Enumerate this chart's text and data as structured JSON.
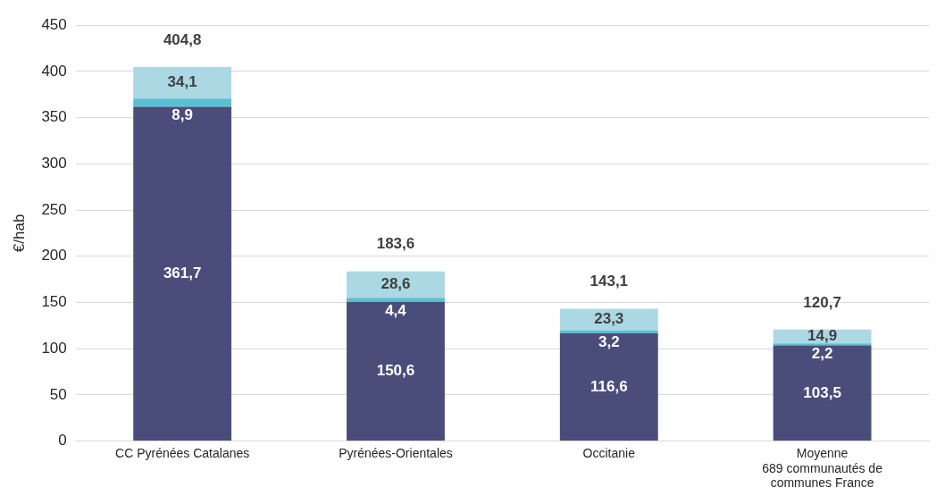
{
  "chart_data": {
    "type": "bar",
    "stacked": true,
    "ylabel": "€/hab",
    "categories": [
      "CC Pyrénées Catalanes",
      "Pyrénées-Orientales",
      "Occitanie",
      "Moyenne\n689 communautés de\ncommunes France"
    ],
    "series": [
      {
        "color": "#4a4d7a",
        "values": [
          361.7,
          150.6,
          116.6,
          103.5
        ],
        "value_labels": [
          "361,7",
          "150,6",
          "116,6",
          "103,5"
        ]
      },
      {
        "color": "#5bbfd2",
        "values": [
          8.9,
          4.4,
          3.2,
          2.2
        ],
        "value_labels": [
          "8,9",
          "4,4",
          "3,2",
          "2,2"
        ]
      },
      {
        "color": "#acd8e3",
        "values": [
          34.1,
          28.6,
          23.3,
          14.9
        ],
        "value_labels": [
          "34,1",
          "28,6",
          "23,3",
          "14,9"
        ]
      }
    ],
    "ylim": [
      0,
      450
    ],
    "yticks": [
      0,
      50,
      100,
      150,
      200,
      250,
      300,
      350,
      400,
      450
    ],
    "grid": "y",
    "totals": [
      "404,8",
      "183,6",
      "143,1",
      "120,7"
    ],
    "legend": false
  }
}
